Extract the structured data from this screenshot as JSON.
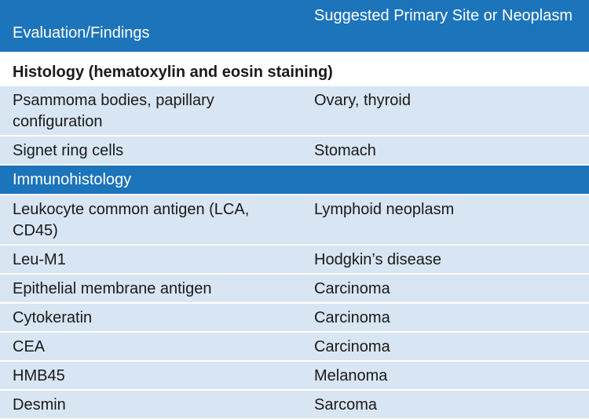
{
  "table": {
    "header": [
      "Evaluation/Findings",
      "Suggested Primary Site or Neoplasm"
    ],
    "sections": [
      {
        "title": "Histology (hematoxylin and eosin staining)",
        "style": "plain",
        "rows": [
          [
            "Psammoma bodies, papillary configuration",
            "Ovary, thyroid"
          ],
          [
            "Signet ring cells",
            "Stomach"
          ]
        ]
      },
      {
        "title": "Immunohistology",
        "style": "band",
        "rows": [
          [
            "Leukocyte common antigen (LCA, CD45)",
            "Lymphoid neoplasm"
          ],
          [
            "Leu-M1",
            "Hodgkin’s disease"
          ],
          [
            "Epithelial membrane antigen",
            "Carcinoma"
          ],
          [
            "Cytokeratin",
            "Carcinoma"
          ],
          [
            "CEA",
            "Carcinoma"
          ],
          [
            "HMB45",
            "Melanoma"
          ],
          [
            "Desmin",
            "Sarcoma"
          ]
        ]
      }
    ]
  }
}
